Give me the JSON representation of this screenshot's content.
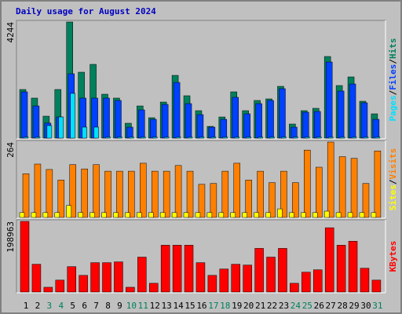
{
  "title": "Daily usage for August 2024",
  "chart_data": [
    {
      "type": "bar",
      "ylim": [
        0,
        4244
      ],
      "yticks": [
        4244
      ],
      "separator": "/",
      "series": [
        {
          "name": "Hits",
          "color": "#00805c",
          "values": [
            1778,
            1463,
            803,
            1778,
            4244,
            2409,
            2696,
            1606,
            1463,
            545,
            1176,
            746,
            1319,
            2294,
            1549,
            1004,
            430,
            774,
            1692,
            1004,
            1377,
            1434,
            1893,
            516,
            1004,
            1090,
            2983,
            1922,
            2237,
            1348,
            889
          ]
        },
        {
          "name": "Files",
          "color": "#0040ff",
          "values": [
            1692,
            1176,
            550,
            774,
            2352,
            1463,
            1463,
            1463,
            1377,
            402,
            1032,
            688,
            1233,
            2036,
            1262,
            860,
            402,
            688,
            1491,
            889,
            1262,
            1377,
            1807,
            402,
            946,
            975,
            2782,
            1721,
            1979,
            1291,
            688
          ]
        },
        {
          "name": "Pages",
          "color": "#00e0ff",
          "values": [
            40,
            40,
            459,
            774,
            1635,
            402,
            402,
            40,
            40,
            40,
            40,
            40,
            40,
            40,
            40,
            40,
            40,
            40,
            40,
            40,
            40,
            40,
            40,
            40,
            40,
            40,
            40,
            40,
            40,
            40,
            40
          ]
        }
      ]
    },
    {
      "type": "bar",
      "ylim": [
        0,
        264
      ],
      "yticks": [
        264
      ],
      "separator": "/",
      "series": [
        {
          "name": "Visits",
          "color": "#ff8000",
          "values": [
            153,
            187,
            168,
            131,
            185,
            170,
            185,
            162,
            162,
            162,
            190,
            162,
            162,
            182,
            162,
            116,
            119,
            162,
            190,
            131,
            162,
            122,
            162,
            122,
            236,
            176,
            264,
            213,
            207,
            119,
            233
          ]
        },
        {
          "name": "Sites",
          "color": "#ffff00",
          "values": [
            17,
            17,
            17,
            17,
            42,
            17,
            17,
            17,
            17,
            17,
            17,
            17,
            17,
            17,
            17,
            17,
            17,
            17,
            17,
            17,
            17,
            17,
            30,
            17,
            17,
            17,
            22,
            17,
            17,
            17,
            17
          ]
        }
      ]
    },
    {
      "type": "bar",
      "ylim": [
        0,
        198963
      ],
      "yticks": [
        198963
      ],
      "categories": [
        "1",
        "2",
        "3",
        "4",
        "5",
        "6",
        "7",
        "8",
        "9",
        "10",
        "11",
        "12",
        "13",
        "14",
        "15",
        "16",
        "17",
        "18",
        "19",
        "20",
        "21",
        "22",
        "23",
        "24",
        "25",
        "26",
        "27",
        "28",
        "29",
        "30",
        "31"
      ],
      "weekend_indices": [
        2,
        3,
        9,
        10,
        16,
        17,
        23,
        24,
        30
      ],
      "weekend_color": "#00805c",
      "series": [
        {
          "name": "KBytes",
          "color": "#ff0000",
          "values": [
            198963,
            78240,
            13410,
            33530,
            71520,
            46940,
            82700,
            82700,
            84930,
            13410,
            98340,
            24590,
            131870,
            131870,
            131870,
            82700,
            46940,
            64820,
            78240,
            75990,
            122930,
            98340,
            122930,
            24590,
            55880,
            62580,
            181040,
            131870,
            143040,
            67050,
            33530
          ]
        }
      ]
    }
  ]
}
